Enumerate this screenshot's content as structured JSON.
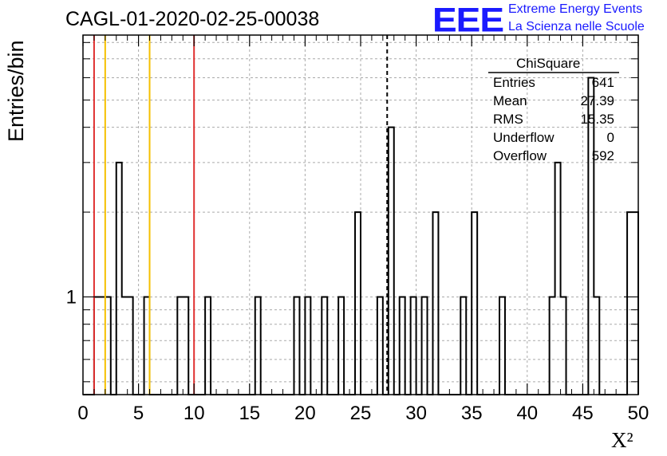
{
  "title": "CAGL-01-2020-02-25-00038",
  "logo": {
    "mark": "EEE",
    "line1": "Extreme Energy Events",
    "line2": "La Scienza nelle Scuole",
    "color": "#1a1aff"
  },
  "ylabel": "Entries/bin",
  "xlabel": "X²",
  "stats": {
    "name": "ChiSquare",
    "rows": [
      {
        "label": "Entries",
        "value": "641"
      },
      {
        "label": "Mean",
        "value": "27.39"
      },
      {
        "label": "RMS",
        "value": "15.35"
      },
      {
        "label": "Underflow",
        "value": "0"
      },
      {
        "label": "Overflow",
        "value": "592"
      }
    ]
  },
  "chart_data": {
    "type": "bar",
    "title": "CAGL-01-2020-02-25-00038",
    "xlabel": "X²",
    "ylabel": "Entries/bin",
    "xlim": [
      0,
      50
    ],
    "ylim": [
      0.45,
      8.5
    ],
    "y_scale": "log",
    "grid": true,
    "bin_width": 0.5,
    "x_ticks": [
      0,
      5,
      10,
      15,
      20,
      25,
      30,
      35,
      40,
      45,
      50
    ],
    "y_tick_labels": [
      {
        "value": 1,
        "label": "1"
      }
    ],
    "bins": [
      {
        "x": 1.0,
        "y": 1
      },
      {
        "x": 1.5,
        "y": 1
      },
      {
        "x": 2.0,
        "y": 1
      },
      {
        "x": 3.0,
        "y": 3
      },
      {
        "x": 3.5,
        "y": 1
      },
      {
        "x": 4.0,
        "y": 1
      },
      {
        "x": 5.5,
        "y": 1
      },
      {
        "x": 8.5,
        "y": 1
      },
      {
        "x": 9.0,
        "y": 1
      },
      {
        "x": 11.0,
        "y": 1
      },
      {
        "x": 15.5,
        "y": 1
      },
      {
        "x": 19.0,
        "y": 1
      },
      {
        "x": 20.0,
        "y": 1
      },
      {
        "x": 21.5,
        "y": 1
      },
      {
        "x": 23.0,
        "y": 1
      },
      {
        "x": 24.5,
        "y": 2
      },
      {
        "x": 26.5,
        "y": 1
      },
      {
        "x": 27.5,
        "y": 4
      },
      {
        "x": 28.5,
        "y": 1
      },
      {
        "x": 29.5,
        "y": 1
      },
      {
        "x": 30.5,
        "y": 1
      },
      {
        "x": 31.5,
        "y": 2
      },
      {
        "x": 34.0,
        "y": 1
      },
      {
        "x": 35.0,
        "y": 2
      },
      {
        "x": 37.5,
        "y": 1
      },
      {
        "x": 42.0,
        "y": 1
      },
      {
        "x": 42.5,
        "y": 3
      },
      {
        "x": 43.0,
        "y": 1
      },
      {
        "x": 45.5,
        "y": 6
      },
      {
        "x": 46.0,
        "y": 1
      },
      {
        "x": 49.0,
        "y": 2
      },
      {
        "x": 49.5,
        "y": 2
      }
    ],
    "vertical_lines": [
      {
        "x": 1.0,
        "color": "#e03030",
        "style": "solid"
      },
      {
        "x": 2.0,
        "color": "#f5c000",
        "style": "solid"
      },
      {
        "x": 6.0,
        "color": "#f5c000",
        "style": "solid"
      },
      {
        "x": 10.0,
        "color": "#e03030",
        "style": "solid"
      },
      {
        "x": 27.39,
        "color": "#000000",
        "style": "dashed"
      }
    ]
  }
}
